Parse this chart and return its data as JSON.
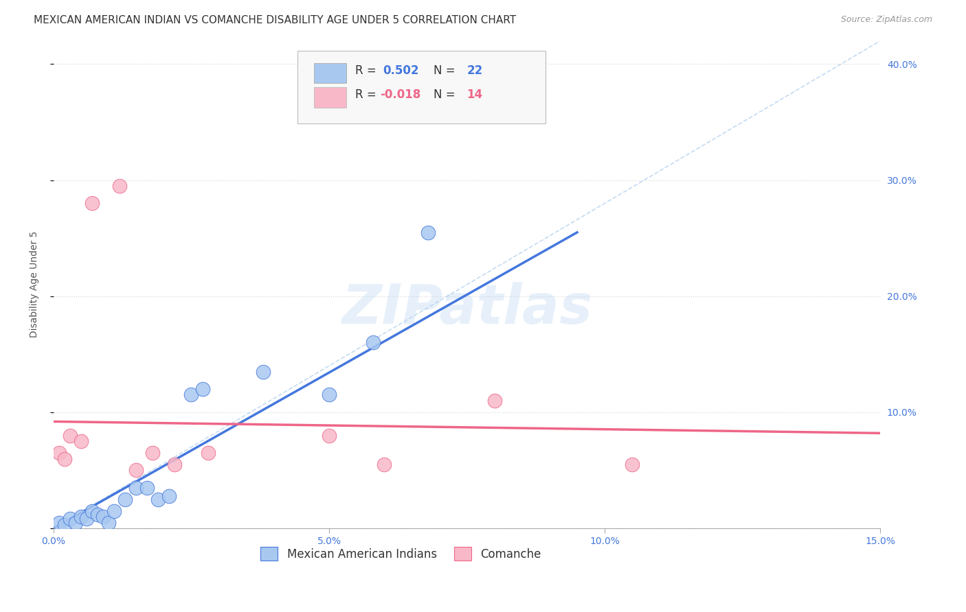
{
  "title": "MEXICAN AMERICAN INDIAN VS COMANCHE DISABILITY AGE UNDER 5 CORRELATION CHART",
  "source": "Source: ZipAtlas.com",
  "ylabel_label": "Disability Age Under 5",
  "xlim": [
    0.0,
    0.15
  ],
  "ylim": [
    0.0,
    0.42
  ],
  "yticks": [
    0.0,
    0.1,
    0.2,
    0.3,
    0.4
  ],
  "ytick_labels": [
    "",
    "10.0%",
    "20.0%",
    "30.0%",
    "40.0%"
  ],
  "xticks": [
    0.0,
    0.05,
    0.1,
    0.15
  ],
  "xtick_labels": [
    "0.0%",
    "5.0%",
    "10.0%",
    "15.0%"
  ],
  "watermark": "ZIPatlas",
  "blue_color": "#A8C8F0",
  "pink_color": "#F8B8C8",
  "blue_line_color": "#4477DD",
  "pink_line_color": "#EE6688",
  "grid_color": "#CCCCCC",
  "blue_scatter_x": [
    0.001,
    0.002,
    0.003,
    0.004,
    0.005,
    0.006,
    0.007,
    0.008,
    0.009,
    0.01,
    0.011,
    0.013,
    0.015,
    0.017,
    0.019,
    0.021,
    0.025,
    0.027,
    0.038,
    0.05,
    0.058,
    0.068
  ],
  "blue_scatter_y": [
    0.005,
    0.003,
    0.008,
    0.005,
    0.01,
    0.008,
    0.015,
    0.012,
    0.01,
    0.005,
    0.015,
    0.025,
    0.035,
    0.035,
    0.025,
    0.028,
    0.115,
    0.12,
    0.135,
    0.115,
    0.16,
    0.255
  ],
  "pink_scatter_x": [
    0.001,
    0.002,
    0.003,
    0.005,
    0.007,
    0.012,
    0.015,
    0.018,
    0.022,
    0.028,
    0.05,
    0.06,
    0.08,
    0.105
  ],
  "pink_scatter_y": [
    0.065,
    0.06,
    0.08,
    0.075,
    0.28,
    0.295,
    0.05,
    0.065,
    0.055,
    0.065,
    0.08,
    0.055,
    0.11,
    0.055
  ],
  "blue_line_x": [
    0.0,
    0.095
  ],
  "blue_line_y": [
    0.0,
    0.255
  ],
  "pink_line_x": [
    0.0,
    0.15
  ],
  "pink_line_y": [
    0.092,
    0.082
  ],
  "dash_line_x": [
    0.0,
    0.15
  ],
  "dash_line_y": [
    0.0,
    0.42
  ],
  "background_color": "#FFFFFF",
  "title_fontsize": 11,
  "axis_label_fontsize": 10,
  "tick_fontsize": 10
}
